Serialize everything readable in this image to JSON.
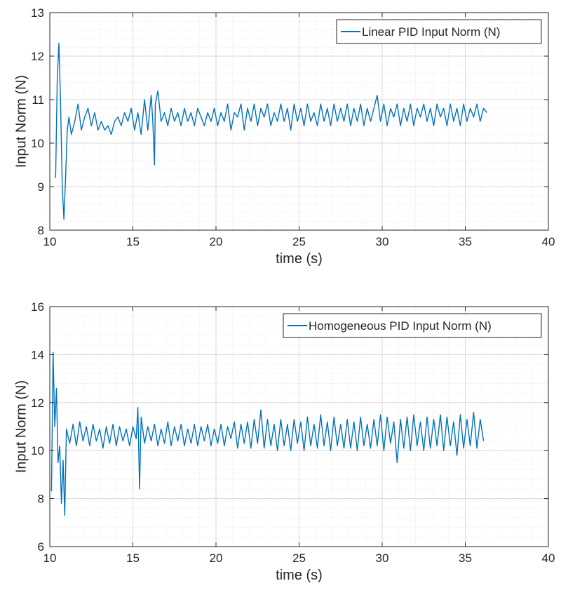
{
  "colors": {
    "series": "#0072BD",
    "axis": "#262626",
    "background": "#ffffff"
  },
  "chart_data": [
    {
      "type": "line",
      "xlabel": "time (s)",
      "ylabel": "Input Norm (N)",
      "xlim": [
        10,
        40
      ],
      "ylim": [
        8,
        13
      ],
      "xticks": [
        10,
        15,
        20,
        25,
        30,
        35,
        40
      ],
      "yticks": [
        8,
        9,
        10,
        11,
        12,
        13
      ],
      "grid": true,
      "minor_grid": true,
      "legend_position": "top-right",
      "series": [
        {
          "name": "Linear PID Input Norm (N)",
          "x": [
            10.35,
            10.45,
            10.55,
            10.65,
            10.75,
            10.85,
            10.95,
            11.05,
            11.15,
            11.3,
            11.5,
            11.7,
            11.9,
            12.1,
            12.3,
            12.5,
            12.7,
            12.9,
            13.1,
            13.3,
            13.5,
            13.7,
            13.9,
            14.1,
            14.3,
            14.5,
            14.7,
            14.9,
            15.1,
            15.3,
            15.5,
            15.7,
            15.9,
            16.1,
            16.2,
            16.3,
            16.35,
            16.5,
            16.7,
            16.9,
            17.1,
            17.3,
            17.5,
            17.7,
            17.9,
            18.1,
            18.3,
            18.5,
            18.7,
            18.9,
            19.1,
            19.3,
            19.5,
            19.7,
            19.9,
            20.1,
            20.3,
            20.5,
            20.7,
            20.9,
            21.1,
            21.3,
            21.5,
            21.7,
            21.9,
            22.1,
            22.3,
            22.5,
            22.7,
            22.9,
            23.1,
            23.3,
            23.5,
            23.7,
            23.9,
            24.1,
            24.3,
            24.5,
            24.7,
            24.9,
            25.1,
            25.3,
            25.5,
            25.7,
            25.9,
            26.1,
            26.3,
            26.5,
            26.7,
            26.9,
            27.1,
            27.3,
            27.5,
            27.7,
            27.9,
            28.1,
            28.3,
            28.5,
            28.7,
            28.9,
            29.1,
            29.3,
            29.5,
            29.7,
            29.9,
            30.1,
            30.3,
            30.5,
            30.7,
            30.9,
            31.1,
            31.3,
            31.5,
            31.7,
            31.9,
            32.1,
            32.3,
            32.5,
            32.7,
            32.9,
            33.1,
            33.3,
            33.5,
            33.7,
            33.9,
            34.1,
            34.3,
            34.5,
            34.7,
            34.9,
            35.1,
            35.3,
            35.5,
            35.7,
            35.9,
            36.1,
            36.3
          ],
          "y": [
            9.2,
            11.5,
            12.3,
            10.9,
            9.0,
            8.25,
            9.2,
            10.3,
            10.6,
            10.2,
            10.5,
            10.9,
            10.3,
            10.6,
            10.8,
            10.4,
            10.7,
            10.3,
            10.5,
            10.3,
            10.4,
            10.2,
            10.5,
            10.6,
            10.4,
            10.7,
            10.5,
            10.8,
            10.3,
            10.7,
            10.2,
            11.0,
            10.3,
            11.1,
            10.5,
            9.5,
            10.9,
            11.2,
            10.5,
            10.7,
            10.4,
            10.8,
            10.5,
            10.7,
            10.4,
            10.8,
            10.5,
            10.7,
            10.4,
            10.8,
            10.6,
            10.4,
            10.7,
            10.5,
            10.8,
            10.4,
            10.7,
            10.5,
            10.9,
            10.3,
            10.7,
            10.6,
            10.9,
            10.3,
            10.8,
            10.5,
            10.9,
            10.4,
            10.8,
            10.6,
            10.9,
            10.4,
            10.7,
            10.5,
            10.9,
            10.5,
            10.8,
            10.3,
            10.9,
            10.5,
            10.8,
            10.4,
            10.9,
            10.5,
            10.7,
            10.4,
            10.9,
            10.5,
            10.8,
            10.4,
            10.9,
            10.5,
            10.8,
            10.5,
            10.9,
            10.4,
            10.8,
            10.5,
            10.9,
            10.4,
            10.8,
            10.5,
            10.8,
            11.1,
            10.5,
            10.9,
            10.4,
            10.8,
            10.6,
            10.9,
            10.4,
            10.8,
            10.5,
            10.9,
            10.4,
            10.8,
            10.6,
            10.9,
            10.5,
            10.8,
            10.4,
            10.9,
            10.6,
            10.8,
            10.4,
            10.9,
            10.5,
            10.8,
            10.4,
            10.9,
            10.5,
            10.8,
            10.6,
            10.9,
            10.5,
            10.8,
            10.7
          ]
        }
      ]
    },
    {
      "type": "line",
      "xlabel": "time (s)",
      "ylabel": "Input Norm (N)",
      "xlim": [
        10,
        40
      ],
      "ylim": [
        6,
        16
      ],
      "xticks": [
        10,
        15,
        20,
        25,
        30,
        35,
        40
      ],
      "yticks": [
        6,
        8,
        10,
        12,
        14,
        16
      ],
      "grid": true,
      "minor_grid": true,
      "legend_position": "top-right",
      "series": [
        {
          "name": "Homogeneous PID Input Norm (N)",
          "x": [
            10.1,
            10.2,
            10.3,
            10.4,
            10.5,
            10.6,
            10.7,
            10.8,
            10.9,
            11.0,
            11.2,
            11.4,
            11.6,
            11.8,
            12.0,
            12.2,
            12.4,
            12.6,
            12.8,
            13.0,
            13.2,
            13.4,
            13.6,
            13.8,
            14.0,
            14.2,
            14.4,
            14.6,
            14.8,
            15.0,
            15.2,
            15.3,
            15.4,
            15.5,
            15.7,
            15.9,
            16.1,
            16.3,
            16.5,
            16.7,
            16.9,
            17.1,
            17.3,
            17.5,
            17.7,
            17.9,
            18.1,
            18.3,
            18.5,
            18.7,
            18.9,
            19.1,
            19.3,
            19.5,
            19.7,
            19.9,
            20.1,
            20.3,
            20.5,
            20.7,
            20.9,
            21.1,
            21.3,
            21.5,
            21.7,
            21.9,
            22.1,
            22.3,
            22.5,
            22.7,
            22.9,
            23.1,
            23.3,
            23.5,
            23.7,
            23.9,
            24.1,
            24.3,
            24.5,
            24.7,
            24.9,
            25.1,
            25.3,
            25.5,
            25.7,
            25.9,
            26.1,
            26.3,
            26.5,
            26.7,
            26.9,
            27.1,
            27.3,
            27.5,
            27.7,
            27.9,
            28.1,
            28.3,
            28.5,
            28.7,
            28.9,
            29.1,
            29.3,
            29.5,
            29.7,
            29.9,
            30.1,
            30.3,
            30.5,
            30.7,
            30.9,
            31.1,
            31.3,
            31.5,
            31.7,
            31.9,
            32.1,
            32.3,
            32.5,
            32.7,
            32.9,
            33.1,
            33.3,
            33.5,
            33.7,
            33.9,
            34.1,
            34.3,
            34.5,
            34.7,
            34.9,
            35.1,
            35.3,
            35.5,
            35.7,
            35.9,
            36.1
          ],
          "y": [
            8.3,
            14.1,
            11.0,
            12.6,
            9.5,
            10.2,
            7.8,
            9.6,
            7.3,
            10.9,
            10.3,
            11.1,
            10.2,
            11.2,
            10.4,
            11.0,
            10.2,
            11.1,
            10.4,
            10.9,
            10.1,
            11.0,
            10.3,
            11.1,
            10.2,
            11.0,
            10.4,
            10.9,
            10.2,
            11.0,
            10.5,
            11.8,
            8.4,
            11.4,
            10.3,
            11.0,
            10.4,
            11.1,
            10.2,
            10.9,
            10.3,
            11.2,
            10.2,
            11.0,
            10.4,
            11.1,
            10.2,
            10.9,
            10.3,
            11.1,
            10.2,
            11.0,
            10.4,
            11.1,
            10.2,
            10.9,
            10.3,
            11.1,
            10.2,
            11.0,
            10.5,
            11.2,
            10.1,
            11.1,
            10.3,
            11.2,
            10.1,
            11.3,
            10.3,
            11.7,
            10.1,
            11.3,
            10.2,
            11.1,
            10.0,
            11.3,
            10.2,
            11.1,
            10.0,
            11.3,
            10.3,
            11.2,
            10.0,
            11.4,
            10.2,
            11.1,
            10.1,
            11.5,
            10.2,
            11.2,
            10.0,
            11.4,
            10.2,
            11.1,
            10.1,
            11.3,
            10.1,
            11.2,
            10.0,
            11.4,
            10.2,
            11.1,
            10.1,
            11.3,
            10.2,
            11.5,
            10.0,
            11.4,
            10.3,
            11.2,
            9.5,
            11.3,
            10.1,
            11.4,
            10.0,
            11.5,
            10.2,
            11.2,
            10.0,
            11.4,
            10.1,
            11.3,
            10.2,
            11.5,
            10.0,
            11.4,
            10.2,
            11.2,
            9.8,
            11.5,
            10.1,
            11.3,
            10.2,
            11.6,
            10.1,
            11.3,
            10.4
          ]
        }
      ]
    }
  ]
}
